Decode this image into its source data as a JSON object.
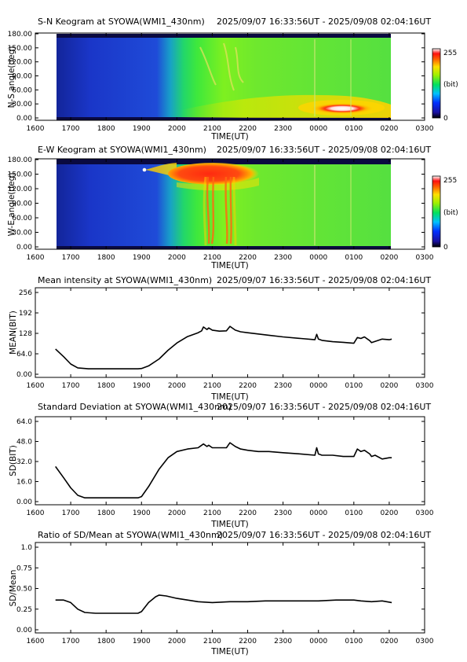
{
  "keograms": [
    {
      "title": "S-N Keogram at SYOWA(WMI1_430nm)",
      "time_range": "2025/09/07 16:33:56UT - 2025/09/08 02:04:16UT",
      "ylabel": "N-S angle(deg)",
      "xlabel": "TIME(UT)",
      "yticks": [
        "0.00",
        "30.00",
        "60.00",
        "90.00",
        "120.00",
        "150.00",
        "180.00"
      ],
      "xticks": [
        "1600",
        "1700",
        "1800",
        "1900",
        "2000",
        "2100",
        "2200",
        "2300",
        "0000",
        "0100",
        "0200",
        "0300"
      ],
      "colorbar": {
        "max": "255",
        "unit": "(bit)",
        "min": "0"
      }
    },
    {
      "title": "E-W Keogram at SYOWA(WMI1_430nm)",
      "time_range": "2025/09/07 16:33:56UT - 2025/09/08 02:04:16UT",
      "ylabel": "W-E angle(deg)",
      "xlabel": "TIME(UT)",
      "yticks": [
        "0.00",
        "30.00",
        "60.00",
        "90.00",
        "120.00",
        "150.00",
        "180.00"
      ],
      "xticks": [
        "1600",
        "1700",
        "1800",
        "1900",
        "2000",
        "2100",
        "2200",
        "2300",
        "0000",
        "0100",
        "0200",
        "0300"
      ],
      "colorbar": {
        "max": "255",
        "unit": "(bit)",
        "min": "0"
      }
    }
  ],
  "chart_data": [
    {
      "type": "line",
      "title": "Mean intensity at SYOWA(WMI1_430nm)",
      "time_range": "2025/09/07 16:33:56UT - 2025/09/08 02:04:16UT",
      "xlabel": "TIME(UT)",
      "ylabel": "MEAN(BIT)",
      "xlim": [
        16.0,
        27.0
      ],
      "ylim": [
        0,
        256
      ],
      "xticks": [
        "1600",
        "1700",
        "1800",
        "1900",
        "2000",
        "2100",
        "2200",
        "2300",
        "0000",
        "0100",
        "0200",
        "0300"
      ],
      "yticks": [
        "0.00",
        "64.0",
        "128",
        "192",
        "256"
      ],
      "series": [
        {
          "x": [
            16.57,
            16.8,
            17.0,
            17.2,
            17.5,
            18.0,
            18.5,
            18.9,
            19.0,
            19.2,
            19.5,
            19.75,
            20.0,
            20.3,
            20.6,
            20.7,
            20.75,
            20.85,
            20.9,
            21.0,
            21.2,
            21.4,
            21.5,
            21.65,
            21.8,
            22.0,
            22.3,
            22.6,
            23.0,
            23.5,
            23.9,
            23.95,
            24.0,
            24.1,
            24.4,
            24.7,
            24.9,
            25.0,
            25.1,
            25.2,
            25.3,
            25.45,
            25.5,
            25.6,
            25.8,
            26.0,
            26.07
          ],
          "y": [
            79,
            55,
            32,
            20,
            17,
            17,
            17,
            17,
            18,
            26,
            48,
            75,
            98,
            118,
            130,
            136,
            148,
            140,
            145,
            138,
            135,
            136,
            150,
            138,
            133,
            130,
            126,
            122,
            117,
            112,
            108,
            125,
            110,
            106,
            102,
            100,
            98,
            97,
            115,
            112,
            117,
            105,
            99,
            103,
            110,
            108,
            110
          ]
        }
      ]
    },
    {
      "type": "line",
      "title": "Standard Deviation at SYOWA(WMI1_430nm)",
      "time_range": "2025/09/07 16:33:56UT - 2025/09/08 02:04:16UT",
      "xlabel": "TIME(UT)",
      "ylabel": "SD(BIT)",
      "xlim": [
        16.0,
        27.0
      ],
      "ylim": [
        0,
        64
      ],
      "xticks": [
        "1600",
        "1700",
        "1800",
        "1900",
        "2000",
        "2100",
        "2200",
        "2300",
        "0000",
        "0100",
        "0200",
        "0300"
      ],
      "yticks": [
        "0.00",
        "16.0",
        "32.0",
        "48.0",
        "64.0"
      ],
      "series": [
        {
          "x": [
            16.57,
            16.8,
            17.0,
            17.2,
            17.4,
            17.7,
            18.0,
            18.5,
            18.9,
            19.0,
            19.2,
            19.5,
            19.75,
            20.0,
            20.3,
            20.6,
            20.75,
            20.85,
            20.9,
            21.0,
            21.2,
            21.4,
            21.5,
            21.65,
            21.8,
            22.0,
            22.3,
            22.6,
            23.0,
            23.5,
            23.9,
            23.95,
            24.0,
            24.1,
            24.4,
            24.7,
            24.9,
            25.0,
            25.1,
            25.2,
            25.3,
            25.45,
            25.5,
            25.6,
            25.8,
            26.0,
            26.07
          ],
          "y": [
            28,
            19,
            11,
            5,
            3,
            3,
            3,
            3,
            3,
            4,
            12,
            26,
            35,
            40,
            42,
            43,
            46,
            44,
            45,
            43,
            43,
            43,
            47,
            44,
            42,
            41,
            40,
            40,
            39,
            38,
            37,
            43,
            38,
            37,
            37,
            36,
            36,
            36,
            42,
            40,
            41,
            38,
            36,
            37,
            34,
            35,
            35
          ]
        }
      ]
    },
    {
      "type": "line",
      "title": "Ratio of SD/Mean at SYOWA(WMI1_430nm)",
      "time_range": "2025/09/07 16:33:56UT - 2025/09/08 02:04:16UT",
      "xlabel": "TIME(UT)",
      "ylabel": "SD/Mean",
      "xlim": [
        16.0,
        27.0
      ],
      "ylim": [
        0,
        1.0
      ],
      "xticks": [
        "1600",
        "1700",
        "1800",
        "1900",
        "2000",
        "2100",
        "2200",
        "2300",
        "0000",
        "0100",
        "0200",
        "0300"
      ],
      "yticks": [
        "0.00",
        "0.25",
        "0.50",
        "0.75",
        "1.0"
      ],
      "series": [
        {
          "x": [
            16.57,
            16.8,
            17.0,
            17.2,
            17.4,
            17.7,
            18.0,
            18.5,
            18.9,
            19.0,
            19.2,
            19.4,
            19.5,
            19.7,
            20.0,
            20.3,
            20.6,
            21.0,
            21.5,
            22.0,
            22.5,
            23.0,
            23.5,
            24.0,
            24.5,
            25.0,
            25.2,
            25.5,
            25.8,
            26.07
          ],
          "y": [
            0.36,
            0.36,
            0.33,
            0.25,
            0.21,
            0.2,
            0.2,
            0.2,
            0.2,
            0.22,
            0.33,
            0.4,
            0.42,
            0.41,
            0.38,
            0.36,
            0.34,
            0.33,
            0.34,
            0.34,
            0.35,
            0.35,
            0.35,
            0.35,
            0.36,
            0.36,
            0.35,
            0.34,
            0.35,
            0.33
          ]
        }
      ]
    }
  ]
}
